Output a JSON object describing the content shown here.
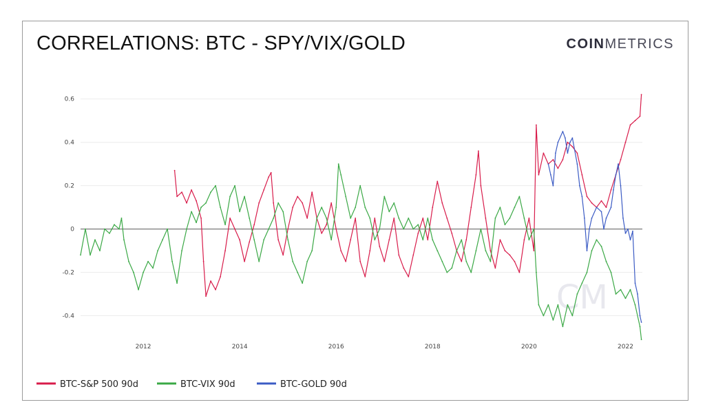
{
  "header": {
    "title": "CORRELATIONS: BTC - SPY/VIX/GOLD",
    "logo_bold": "COIN",
    "logo_light": "METRICS",
    "watermark": "CM"
  },
  "chart_data": {
    "type": "line",
    "title": "CORRELATIONS: BTC - SPY/VIX/GOLD",
    "xlabel": "",
    "ylabel": "",
    "xlim": [
      2010.7,
      2022.35
    ],
    "ylim": [
      -0.5,
      0.65
    ],
    "x_ticks": [
      2012,
      2014,
      2016,
      2018,
      2020,
      2022
    ],
    "y_ticks": [
      0.6,
      0.4,
      0.2,
      0,
      -0.2,
      -0.4
    ],
    "grid": true,
    "legend_position": "bottom-left",
    "series": [
      {
        "name": "BTC-S&P 500 90d",
        "color": "#d81b4a",
        "points": [
          [
            2012.65,
            0.27
          ],
          [
            2012.7,
            0.15
          ],
          [
            2012.8,
            0.17
          ],
          [
            2012.9,
            0.12
          ],
          [
            2013.0,
            0.18
          ],
          [
            2013.1,
            0.13
          ],
          [
            2013.2,
            0.05
          ],
          [
            2013.25,
            -0.15
          ],
          [
            2013.3,
            -0.31
          ],
          [
            2013.4,
            -0.24
          ],
          [
            2013.5,
            -0.28
          ],
          [
            2013.6,
            -0.22
          ],
          [
            2013.7,
            -0.1
          ],
          [
            2013.8,
            0.05
          ],
          [
            2013.9,
            0.0
          ],
          [
            2014.0,
            -0.05
          ],
          [
            2014.1,
            -0.15
          ],
          [
            2014.2,
            -0.06
          ],
          [
            2014.3,
            0.02
          ],
          [
            2014.4,
            0.12
          ],
          [
            2014.5,
            0.18
          ],
          [
            2014.6,
            0.24
          ],
          [
            2014.65,
            0.26
          ],
          [
            2014.7,
            0.12
          ],
          [
            2014.8,
            -0.05
          ],
          [
            2014.9,
            -0.12
          ],
          [
            2015.0,
            0.0
          ],
          [
            2015.1,
            0.1
          ],
          [
            2015.2,
            0.15
          ],
          [
            2015.3,
            0.12
          ],
          [
            2015.4,
            0.05
          ],
          [
            2015.5,
            0.17
          ],
          [
            2015.6,
            0.05
          ],
          [
            2015.7,
            -0.02
          ],
          [
            2015.8,
            0.02
          ],
          [
            2015.9,
            0.12
          ],
          [
            2016.0,
            0.0
          ],
          [
            2016.1,
            -0.1
          ],
          [
            2016.2,
            -0.15
          ],
          [
            2016.3,
            -0.05
          ],
          [
            2016.4,
            0.05
          ],
          [
            2016.5,
            -0.15
          ],
          [
            2016.6,
            -0.22
          ],
          [
            2016.7,
            -0.1
          ],
          [
            2016.8,
            0.05
          ],
          [
            2016.9,
            -0.08
          ],
          [
            2017.0,
            -0.15
          ],
          [
            2017.1,
            -0.05
          ],
          [
            2017.2,
            0.05
          ],
          [
            2017.3,
            -0.12
          ],
          [
            2017.4,
            -0.18
          ],
          [
            2017.5,
            -0.22
          ],
          [
            2017.6,
            -0.12
          ],
          [
            2017.7,
            -0.02
          ],
          [
            2017.8,
            0.05
          ],
          [
            2017.9,
            -0.05
          ],
          [
            2018.0,
            0.1
          ],
          [
            2018.1,
            0.22
          ],
          [
            2018.2,
            0.12
          ],
          [
            2018.3,
            0.05
          ],
          [
            2018.4,
            -0.02
          ],
          [
            2018.5,
            -0.1
          ],
          [
            2018.6,
            -0.15
          ],
          [
            2018.7,
            -0.05
          ],
          [
            2018.8,
            0.1
          ],
          [
            2018.9,
            0.25
          ],
          [
            2018.95,
            0.36
          ],
          [
            2019.0,
            0.2
          ],
          [
            2019.1,
            0.05
          ],
          [
            2019.2,
            -0.1
          ],
          [
            2019.3,
            -0.18
          ],
          [
            2019.4,
            -0.05
          ],
          [
            2019.5,
            -0.1
          ],
          [
            2019.6,
            -0.12
          ],
          [
            2019.7,
            -0.15
          ],
          [
            2019.8,
            -0.2
          ],
          [
            2019.9,
            -0.05
          ],
          [
            2020.0,
            0.05
          ],
          [
            2020.1,
            -0.1
          ],
          [
            2020.15,
            0.48
          ],
          [
            2020.2,
            0.25
          ],
          [
            2020.3,
            0.35
          ],
          [
            2020.4,
            0.3
          ],
          [
            2020.5,
            0.32
          ],
          [
            2020.6,
            0.28
          ],
          [
            2020.7,
            0.32
          ],
          [
            2020.8,
            0.4
          ],
          [
            2020.9,
            0.38
          ],
          [
            2021.0,
            0.35
          ],
          [
            2021.1,
            0.25
          ],
          [
            2021.2,
            0.15
          ],
          [
            2021.3,
            0.12
          ],
          [
            2021.4,
            0.1
          ],
          [
            2021.5,
            0.13
          ],
          [
            2021.6,
            0.1
          ],
          [
            2021.7,
            0.18
          ],
          [
            2021.8,
            0.25
          ],
          [
            2021.9,
            0.32
          ],
          [
            2022.0,
            0.4
          ],
          [
            2022.1,
            0.48
          ],
          [
            2022.2,
            0.5
          ],
          [
            2022.3,
            0.52
          ],
          [
            2022.33,
            0.62
          ]
        ]
      },
      {
        "name": "BTC-VIX 90d",
        "color": "#3aa845",
        "points": [
          [
            2010.7,
            -0.12
          ],
          [
            2010.8,
            0.0
          ],
          [
            2010.9,
            -0.12
          ],
          [
            2011.0,
            -0.05
          ],
          [
            2011.1,
            -0.1
          ],
          [
            2011.2,
            0.0
          ],
          [
            2011.3,
            -0.02
          ],
          [
            2011.4,
            0.02
          ],
          [
            2011.5,
            0.0
          ],
          [
            2011.55,
            0.05
          ],
          [
            2011.6,
            -0.05
          ],
          [
            2011.7,
            -0.15
          ],
          [
            2011.8,
            -0.2
          ],
          [
            2011.9,
            -0.28
          ],
          [
            2012.0,
            -0.2
          ],
          [
            2012.1,
            -0.15
          ],
          [
            2012.2,
            -0.18
          ],
          [
            2012.3,
            -0.1
          ],
          [
            2012.4,
            -0.05
          ],
          [
            2012.5,
            0.0
          ],
          [
            2012.6,
            -0.15
          ],
          [
            2012.7,
            -0.25
          ],
          [
            2012.8,
            -0.1
          ],
          [
            2012.9,
            0.0
          ],
          [
            2013.0,
            0.08
          ],
          [
            2013.1,
            0.03
          ],
          [
            2013.2,
            0.1
          ],
          [
            2013.3,
            0.12
          ],
          [
            2013.4,
            0.17
          ],
          [
            2013.5,
            0.2
          ],
          [
            2013.6,
            0.1
          ],
          [
            2013.7,
            0.02
          ],
          [
            2013.8,
            0.15
          ],
          [
            2013.9,
            0.2
          ],
          [
            2014.0,
            0.08
          ],
          [
            2014.1,
            0.15
          ],
          [
            2014.2,
            0.05
          ],
          [
            2014.3,
            -0.05
          ],
          [
            2014.4,
            -0.15
          ],
          [
            2014.5,
            -0.05
          ],
          [
            2014.6,
            0.0
          ],
          [
            2014.7,
            0.05
          ],
          [
            2014.8,
            0.12
          ],
          [
            2014.9,
            0.08
          ],
          [
            2015.0,
            -0.05
          ],
          [
            2015.1,
            -0.15
          ],
          [
            2015.2,
            -0.2
          ],
          [
            2015.3,
            -0.25
          ],
          [
            2015.4,
            -0.15
          ],
          [
            2015.5,
            -0.1
          ],
          [
            2015.6,
            0.05
          ],
          [
            2015.7,
            0.1
          ],
          [
            2015.8,
            0.05
          ],
          [
            2015.9,
            -0.05
          ],
          [
            2016.0,
            0.1
          ],
          [
            2016.05,
            0.3
          ],
          [
            2016.1,
            0.25
          ],
          [
            2016.2,
            0.15
          ],
          [
            2016.3,
            0.05
          ],
          [
            2016.4,
            0.1
          ],
          [
            2016.5,
            0.2
          ],
          [
            2016.6,
            0.1
          ],
          [
            2016.7,
            0.05
          ],
          [
            2016.8,
            -0.05
          ],
          [
            2016.9,
            0.0
          ],
          [
            2017.0,
            0.15
          ],
          [
            2017.1,
            0.08
          ],
          [
            2017.2,
            0.12
          ],
          [
            2017.3,
            0.05
          ],
          [
            2017.4,
            0.0
          ],
          [
            2017.5,
            0.05
          ],
          [
            2017.6,
            0.0
          ],
          [
            2017.7,
            0.02
          ],
          [
            2017.8,
            -0.05
          ],
          [
            2017.9,
            0.05
          ],
          [
            2018.0,
            -0.05
          ],
          [
            2018.1,
            -0.1
          ],
          [
            2018.2,
            -0.15
          ],
          [
            2018.3,
            -0.2
          ],
          [
            2018.4,
            -0.18
          ],
          [
            2018.5,
            -0.1
          ],
          [
            2018.6,
            -0.05
          ],
          [
            2018.7,
            -0.15
          ],
          [
            2018.8,
            -0.2
          ],
          [
            2018.9,
            -0.1
          ],
          [
            2019.0,
            0.0
          ],
          [
            2019.1,
            -0.1
          ],
          [
            2019.2,
            -0.15
          ],
          [
            2019.3,
            0.05
          ],
          [
            2019.4,
            0.1
          ],
          [
            2019.5,
            0.02
          ],
          [
            2019.6,
            0.05
          ],
          [
            2019.7,
            0.1
          ],
          [
            2019.8,
            0.15
          ],
          [
            2019.9,
            0.05
          ],
          [
            2020.0,
            -0.05
          ],
          [
            2020.1,
            0.0
          ],
          [
            2020.15,
            -0.2
          ],
          [
            2020.2,
            -0.35
          ],
          [
            2020.3,
            -0.4
          ],
          [
            2020.4,
            -0.35
          ],
          [
            2020.5,
            -0.42
          ],
          [
            2020.6,
            -0.35
          ],
          [
            2020.7,
            -0.45
          ],
          [
            2020.8,
            -0.35
          ],
          [
            2020.9,
            -0.4
          ],
          [
            2021.0,
            -0.3
          ],
          [
            2021.1,
            -0.25
          ],
          [
            2021.2,
            -0.2
          ],
          [
            2021.3,
            -0.1
          ],
          [
            2021.4,
            -0.05
          ],
          [
            2021.5,
            -0.08
          ],
          [
            2021.6,
            -0.15
          ],
          [
            2021.7,
            -0.2
          ],
          [
            2021.8,
            -0.3
          ],
          [
            2021.9,
            -0.28
          ],
          [
            2022.0,
            -0.32
          ],
          [
            2022.1,
            -0.28
          ],
          [
            2022.2,
            -0.35
          ],
          [
            2022.3,
            -0.45
          ],
          [
            2022.33,
            -0.51
          ]
        ]
      },
      {
        "name": "BTC-GOLD 90d",
        "color": "#3b5bc4",
        "points": [
          [
            2020.4,
            0.3
          ],
          [
            2020.45,
            0.25
          ],
          [
            2020.5,
            0.2
          ],
          [
            2020.55,
            0.35
          ],
          [
            2020.6,
            0.4
          ],
          [
            2020.7,
            0.45
          ],
          [
            2020.75,
            0.42
          ],
          [
            2020.8,
            0.35
          ],
          [
            2020.85,
            0.4
          ],
          [
            2020.9,
            0.42
          ],
          [
            2021.0,
            0.3
          ],
          [
            2021.05,
            0.2
          ],
          [
            2021.1,
            0.15
          ],
          [
            2021.15,
            0.05
          ],
          [
            2021.2,
            -0.1
          ],
          [
            2021.25,
            0.0
          ],
          [
            2021.3,
            0.05
          ],
          [
            2021.4,
            0.1
          ],
          [
            2021.5,
            0.08
          ],
          [
            2021.55,
            0.0
          ],
          [
            2021.6,
            0.05
          ],
          [
            2021.7,
            0.1
          ],
          [
            2021.75,
            0.18
          ],
          [
            2021.8,
            0.25
          ],
          [
            2021.85,
            0.3
          ],
          [
            2021.9,
            0.2
          ],
          [
            2021.95,
            0.05
          ],
          [
            2022.0,
            -0.02
          ],
          [
            2022.05,
            0.0
          ],
          [
            2022.1,
            -0.05
          ],
          [
            2022.15,
            -0.01
          ],
          [
            2022.2,
            -0.25
          ],
          [
            2022.25,
            -0.3
          ],
          [
            2022.3,
            -0.4
          ],
          [
            2022.33,
            -0.43
          ]
        ]
      }
    ]
  },
  "legend": [
    {
      "label": "BTC-S&P 500 90d",
      "color": "#d81b4a"
    },
    {
      "label": "BTC-VIX 90d",
      "color": "#3aa845"
    },
    {
      "label": "BTC-GOLD 90d",
      "color": "#3b5bc4"
    }
  ]
}
